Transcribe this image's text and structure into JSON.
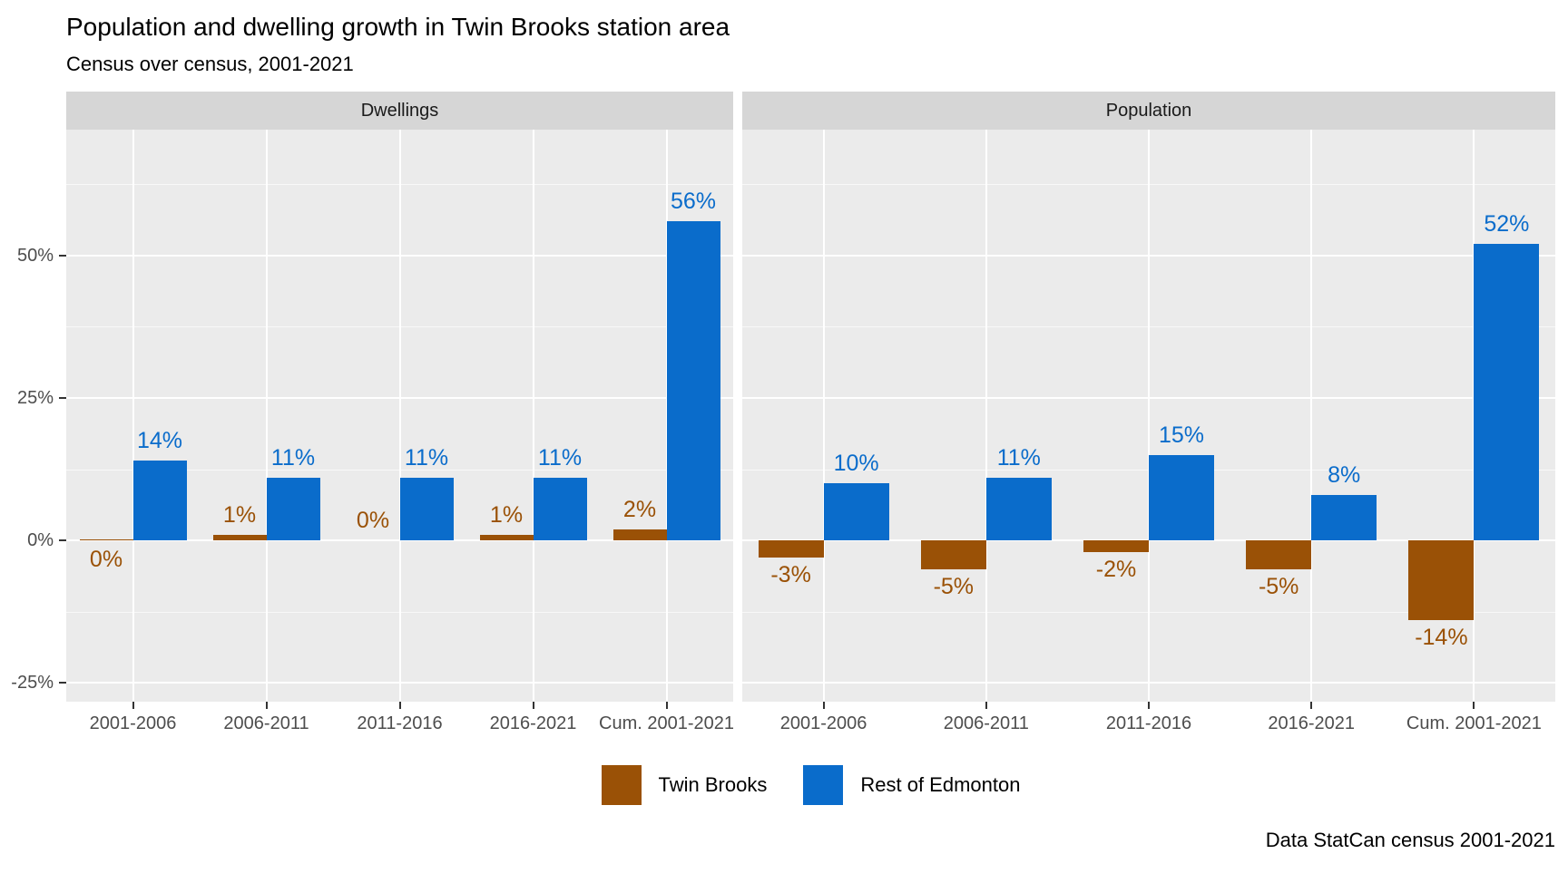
{
  "chart_data": {
    "type": "bar",
    "title": "Population and dwelling growth in Twin Brooks station area",
    "subtitle": "Census over census, 2001-2021",
    "caption": "Data StatCan census 2001-2021",
    "categories": [
      "2001-2006",
      "2006-2011",
      "2011-2016",
      "2016-2021",
      "Cum. 2001-2021"
    ],
    "y_axis": {
      "tick_values": [
        50,
        25,
        0,
        -25
      ],
      "tick_labels": [
        "50%",
        "25%",
        "0%",
        "-25%"
      ],
      "range": [
        -28.3,
        72.1
      ],
      "major_gridlines": [
        -25,
        0,
        25,
        50
      ],
      "minor_gridlines": [
        -12.5,
        12.5,
        37.5,
        62.5
      ],
      "grid": true
    },
    "series_meta": [
      {
        "name": "Twin Brooks",
        "color": "#9A5106"
      },
      {
        "name": "Rest of Edmonton",
        "color": "#0A6CCB"
      }
    ],
    "facets": [
      {
        "label": "Dwellings",
        "series": [
          {
            "name": "Twin Brooks",
            "values": [
              0,
              1,
              0,
              1,
              2
            ],
            "labels": [
              "0%",
              "1%",
              "0%",
              "1%",
              "2%"
            ],
            "label_sides": [
              "below",
              "above",
              "above",
              "above",
              "above"
            ]
          },
          {
            "name": "Rest of Edmonton",
            "values": [
              14,
              11,
              11,
              11,
              56
            ],
            "labels": [
              "14%",
              "11%",
              "11%",
              "11%",
              "56%"
            ]
          }
        ]
      },
      {
        "label": "Population",
        "series": [
          {
            "name": "Twin Brooks",
            "values": [
              -3,
              -5,
              -2,
              -5,
              -14
            ],
            "labels": [
              "-3%",
              "-5%",
              "-2%",
              "-5%",
              "-14%"
            ]
          },
          {
            "name": "Rest of Edmonton",
            "values": [
              10,
              11,
              15,
              8,
              52
            ],
            "labels": [
              "10%",
              "11%",
              "15%",
              "8%",
              "52%"
            ]
          }
        ]
      }
    ],
    "legend": {
      "position": "bottom",
      "items": [
        {
          "label": "Twin Brooks",
          "color": "#9A5106"
        },
        {
          "label": "Rest of Edmonton",
          "color": "#0A6CCB"
        }
      ]
    },
    "colors": {
      "panel_background": "#EBEBEB",
      "strip_background": "#D6D6D6",
      "gridline": "#FFFFFF",
      "axis_text": "#4D4D4D",
      "tick_mark": "#333333"
    }
  }
}
